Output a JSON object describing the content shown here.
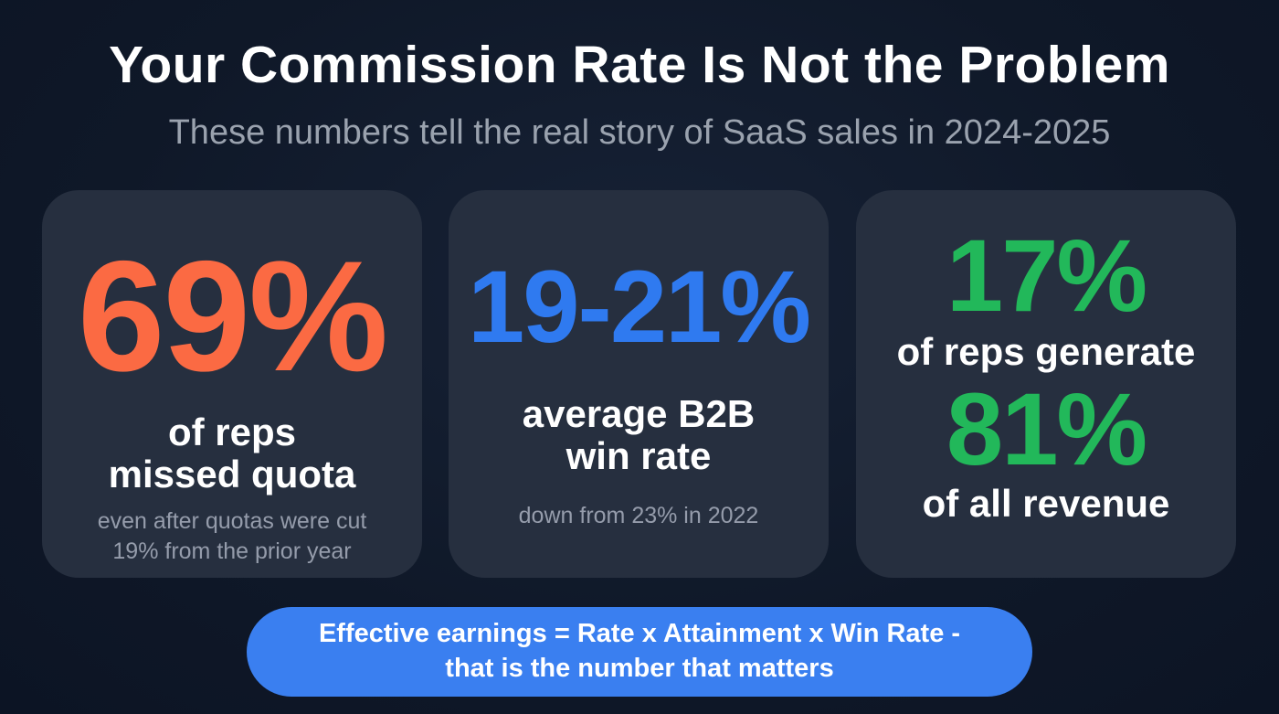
{
  "header": {
    "title": "Your Commission Rate Is Not the Problem",
    "subtitle": "These numbers tell the real story of SaaS sales in 2024-2025"
  },
  "cards": [
    {
      "stat": "69%",
      "label_line1": "of reps",
      "label_line2": "missed quota",
      "note_line1": "even after quotas were cut",
      "note_line2": "19% from the prior year",
      "color": "#fb6a43"
    },
    {
      "stat": "19-21%",
      "label_line1": "average B2B",
      "label_line2": "win rate",
      "note_line1": "down from 23% in 2022",
      "color": "#2f7af0"
    },
    {
      "stat1": "17%",
      "label1": "of reps generate",
      "stat2": "81%",
      "label2": "of all revenue",
      "color": "#22b85a"
    }
  ],
  "callout": {
    "line1": "Effective earnings = Rate x Attainment x Win Rate -",
    "line2": "that is the number that matters",
    "color": "#3a7ff0"
  }
}
